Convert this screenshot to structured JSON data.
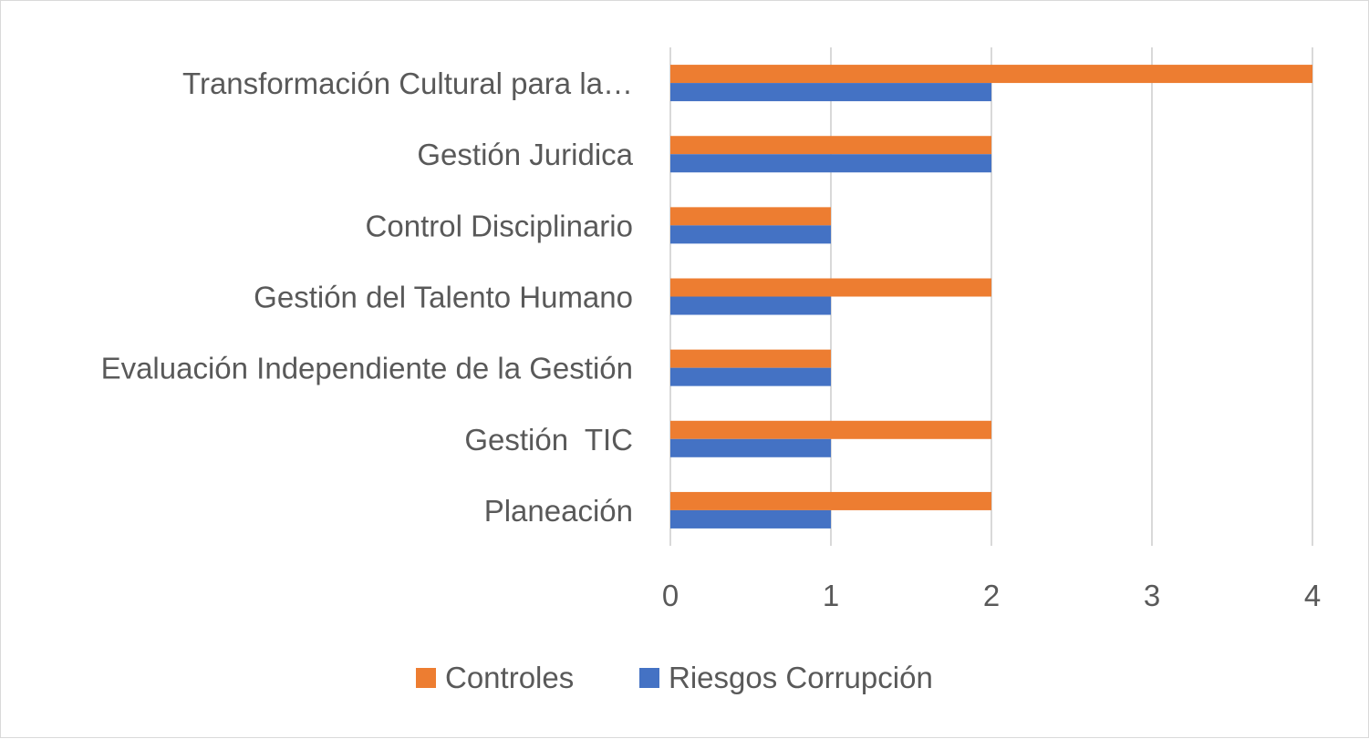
{
  "chart_data": {
    "type": "bar",
    "orientation": "horizontal",
    "categories": [
      "Transformación Cultural para la…",
      "Gestión Juridica",
      "Control Disciplinario",
      "Gestión del Talento Humano",
      "Evaluación Independiente de la Gestión",
      "Gestión  TIC",
      "Planeación"
    ],
    "series": [
      {
        "name": "Controles",
        "color": "#ED7D31",
        "values": [
          4,
          2,
          1,
          2,
          1,
          2,
          2
        ]
      },
      {
        "name": "Riesgos Corrupción",
        "color": "#4472C4",
        "values": [
          2,
          2,
          1,
          1,
          1,
          1,
          1
        ]
      }
    ],
    "xlim": [
      0,
      4
    ],
    "xticks": [
      "0",
      "1",
      "2",
      "3",
      "4"
    ],
    "grid": true,
    "legend": "bottom"
  }
}
